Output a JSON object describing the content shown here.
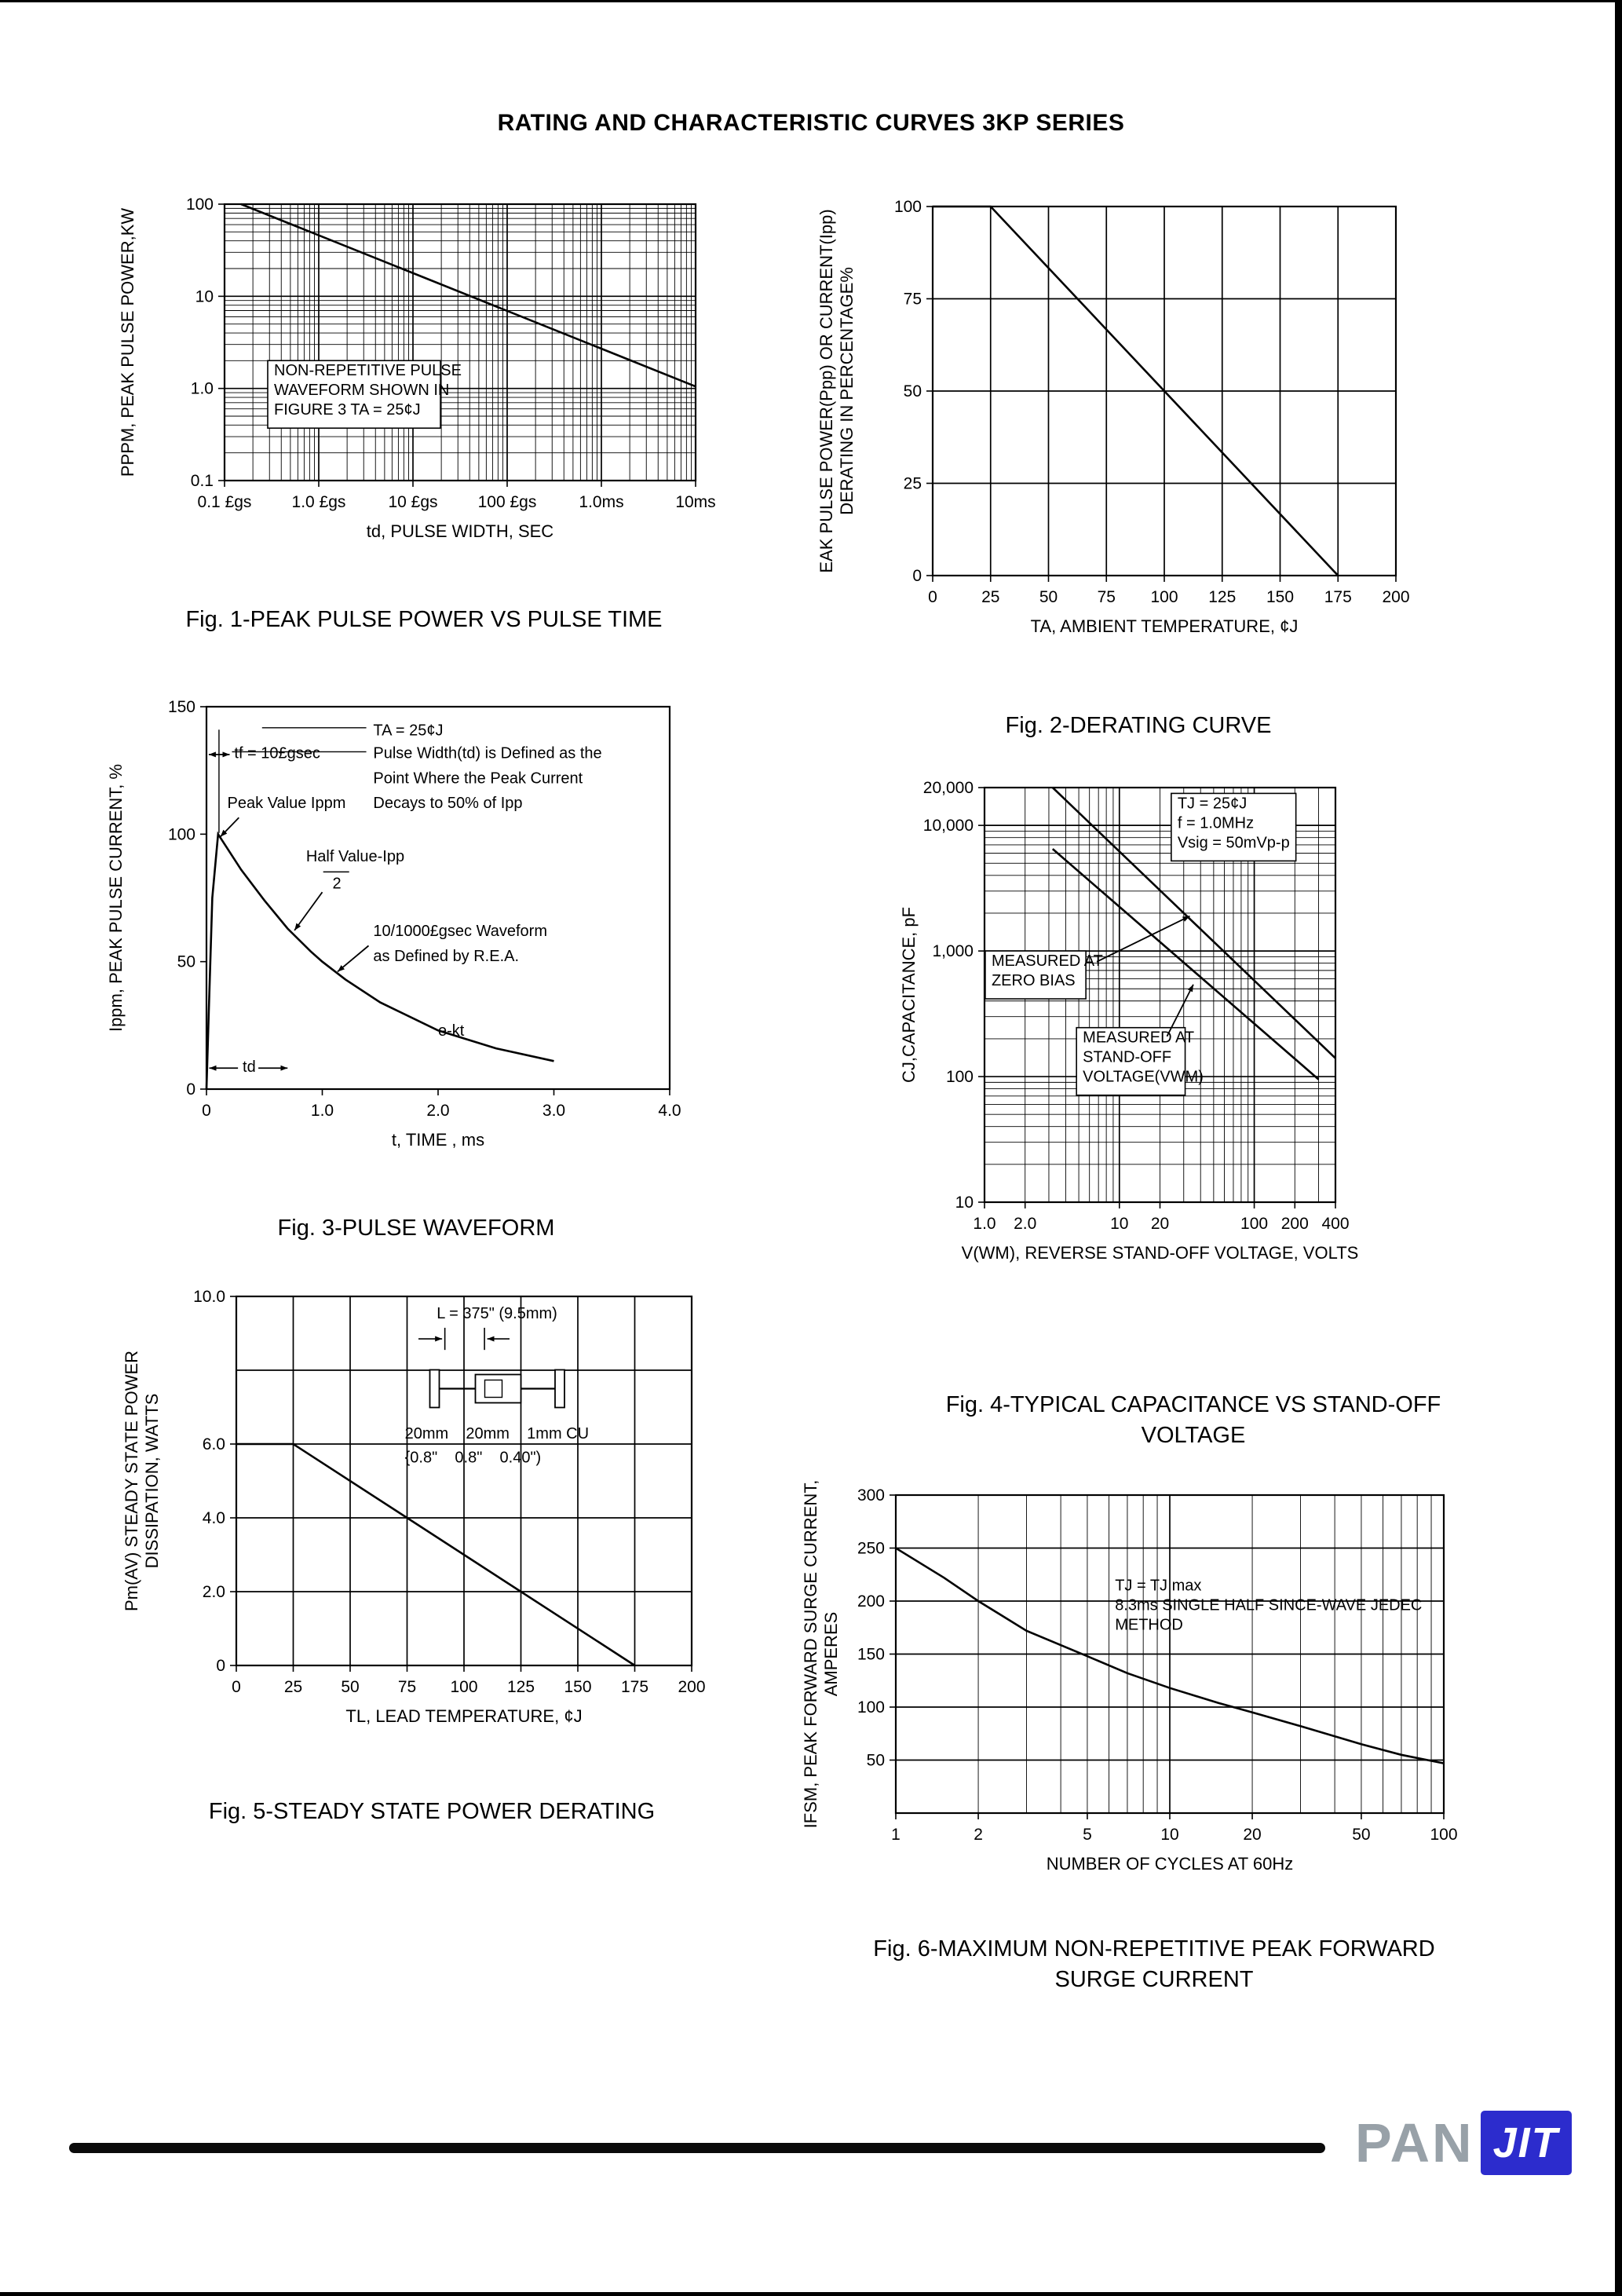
{
  "page": {
    "title": "RATING AND CHARACTERISTIC CURVES 3KP SERIES",
    "logo": {
      "pan": "PAN",
      "jit": "JIT",
      "accent": "#2c2ccd",
      "pan_color": "#98a1a8"
    }
  },
  "chart_data": [
    {
      "id": "fig1",
      "type": "line",
      "caption": [
        "Fig. 1-PEAK PULSE POWER VS PULSE TIME"
      ],
      "xlabel": "td, PULSE WIDTH, SEC",
      "ylabel": [
        "PPPM, PEAK PULSE POWER,KW"
      ],
      "xscale": "log",
      "yscale": "log",
      "xlim": [
        1e-07,
        0.01
      ],
      "ylim": [
        0.1,
        100
      ],
      "xticks": {
        "values": [
          1e-07,
          1e-06,
          1e-05,
          0.0001,
          0.001,
          0.01
        ],
        "labels": [
          "0.1 £gs",
          "1.0 £gs",
          "10 £gs",
          "100 £gs",
          "1.0ms",
          "10ms"
        ]
      },
      "yticks": {
        "values": [
          0.1,
          1,
          10,
          100
        ],
        "labels": [
          "0.1",
          "1.0",
          "10",
          "100"
        ]
      },
      "grid": {
        "x": "log",
        "y": "log"
      },
      "series": [
        {
          "name": "peak-pulse-power",
          "points": [
            [
              1.5e-07,
              100
            ],
            [
              0.01,
              1.05
            ]
          ]
        }
      ],
      "annotations": [
        {
          "t": [
            "NON-REPETITIVE PULSE",
            "WAVEFORM SHOWN IN",
            "FIGURE 3 TA = 25¢J"
          ],
          "fx": 0.105,
          "fy": 0.62,
          "box": true
        }
      ]
    },
    {
      "id": "fig2",
      "type": "line",
      "caption": [
        "Fig. 2-DERATING CURVE"
      ],
      "xlabel": "TA, AMBIENT TEMPERATURE, ¢J",
      "ylabel": [
        "EAK PULSE POWER(Ppp) OR CURRENT(Ipp)",
        "DERATING IN PERCENTAGE%"
      ],
      "xscale": "linear",
      "yscale": "linear",
      "xlim": [
        0,
        200
      ],
      "ylim": [
        0,
        100
      ],
      "xticks": {
        "values": [
          0,
          25,
          50,
          75,
          100,
          125,
          150,
          175,
          200
        ],
        "labels": [
          "0",
          "25",
          "50",
          "75",
          "100",
          "125",
          "150",
          "175",
          "200"
        ]
      },
      "yticks": {
        "values": [
          0,
          25,
          50,
          75,
          100
        ],
        "labels": [
          "0",
          "25",
          "50",
          "75",
          "100"
        ]
      },
      "grid": {
        "x": [
          25,
          50,
          75,
          100,
          125,
          150,
          175
        ],
        "y": [
          25,
          50,
          75
        ]
      },
      "series": [
        {
          "name": "derating",
          "points": [
            [
              0,
              100
            ],
            [
              25,
              100
            ],
            [
              175,
              0
            ]
          ]
        }
      ],
      "annotations": []
    },
    {
      "id": "fig3",
      "type": "line",
      "caption": [
        "Fig. 3-PULSE WAVEFORM"
      ],
      "xlabel": "t, TIME , ms",
      "ylabel": [
        "Ippm, PEAK PULSE CURRENT, %"
      ],
      "xscale": "linear",
      "yscale": "linear",
      "xlim": [
        0,
        4
      ],
      "ylim": [
        0,
        150
      ],
      "xticks": {
        "values": [
          0,
          1,
          2,
          3,
          4
        ],
        "labels": [
          "0",
          "1.0",
          "2.0",
          "3.0",
          "4.0"
        ]
      },
      "yticks": {
        "values": [
          0,
          50,
          100,
          150
        ],
        "labels": [
          "0",
          "50",
          "100",
          "150"
        ]
      },
      "grid": null,
      "series": [
        {
          "name": "pulse-waveform",
          "points": [
            [
              0,
              0
            ],
            [
              0.02,
              30
            ],
            [
              0.05,
              75
            ],
            [
              0.1,
              100
            ],
            [
              0.3,
              86
            ],
            [
              0.5,
              74
            ],
            [
              0.7,
              63
            ],
            [
              0.9,
              54
            ],
            [
              1.0,
              50
            ],
            [
              1.2,
              43
            ],
            [
              1.5,
              34
            ],
            [
              2.0,
              23
            ],
            [
              2.5,
              16
            ],
            [
              3.0,
              11
            ]
          ]
        }
      ],
      "annotations": [
        {
          "t": [
            "TA = 25¢J"
          ],
          "fx": 0.36,
          "fy": 0.075
        },
        {
          "t": [
            "tf = 10£gsec"
          ],
          "fx": 0.06,
          "fy": 0.135,
          "darrow": [
            0.005,
            0.125,
            0.05,
            0.125
          ]
        },
        {
          "t": [
            "Pulse Width(td) is Defined as the"
          ],
          "fx": 0.36,
          "fy": 0.135
        },
        {
          "t": [
            "Point Where the Peak Current"
          ],
          "fx": 0.36,
          "fy": 0.2
        },
        {
          "t": [
            "Peak Value Ippm"
          ],
          "fx": 0.045,
          "fy": 0.265,
          "arrow": [
            0.07,
            0.29,
            0.03,
            0.34
          ]
        },
        {
          "t": [
            "Decays to 50% of Ipp"
          ],
          "fx": 0.36,
          "fy": 0.265
        },
        {
          "t": [
            "Half Value-Ipp"
          ],
          "fx": 0.215,
          "fy": 0.405,
          "line": [
            0.252,
            0.432,
            0.308,
            0.432
          ],
          "arrow": [
            0.25,
            0.485,
            0.19,
            0.585
          ]
        },
        {
          "t": [
            "2"
          ],
          "fx": 0.272,
          "fy": 0.475
        },
        {
          "t": [
            "10/1000£gsec Waveform"
          ],
          "fx": 0.36,
          "fy": 0.6,
          "arrow": [
            0.35,
            0.625,
            0.283,
            0.693
          ]
        },
        {
          "t": [
            "as Defined by R.E.A."
          ],
          "fx": 0.36,
          "fy": 0.665
        },
        {
          "t": [
            "e-kt"
          ],
          "fx": 0.5,
          "fy": 0.86
        },
        {
          "t": [
            "td"
          ],
          "fx": 0.078,
          "fy": 0.955
        },
        {
          "t": [],
          "fx": 0,
          "fy": 0,
          "arrow": [
            0.068,
            0.945,
            0.006,
            0.945
          ]
        },
        {
          "t": [],
          "fx": 0,
          "fy": 0,
          "arrow": [
            0.112,
            0.945,
            0.175,
            0.945
          ]
        },
        {
          "t": [],
          "fx": 0,
          "fy": 0,
          "line": [
            0.345,
            0.055,
            0.12,
            0.055
          ]
        },
        {
          "t": [],
          "fx": 0,
          "fy": 0,
          "line": [
            0.345,
            0.118,
            0.055,
            0.118
          ]
        },
        {
          "t": [],
          "fx": 0,
          "fy": 0,
          "line": [
            0.027,
            0.06,
            0.027,
            0.33
          ]
        }
      ]
    },
    {
      "id": "fig4",
      "type": "line",
      "caption": [
        "Fig. 4-TYPICAL CAPACITANCE VS STAND-OFF",
        "VOLTAGE"
      ],
      "xlabel": "V(WM), REVERSE STAND-OFF VOLTAGE, VOLTS",
      "ylabel": [
        "CJ,CAPACITANCE, pF"
      ],
      "xscale": "log",
      "yscale": "log",
      "xlim": [
        1,
        400
      ],
      "ylim": [
        10,
        20000
      ],
      "xticks": {
        "values": [
          1,
          2,
          10,
          20,
          100,
          200,
          400
        ],
        "labels": [
          "1.0",
          "2.0",
          "10",
          "20",
          "100",
          "200",
          "400"
        ]
      },
      "yticks": {
        "values": [
          10,
          100,
          1000,
          10000,
          20000
        ],
        "labels": [
          "10",
          "100",
          "1,000",
          "10,000",
          "20,000"
        ]
      },
      "grid": {
        "x": "log",
        "y": "log"
      },
      "series": [
        {
          "name": "zero-bias",
          "points": [
            [
              3.2,
              20000
            ],
            [
              400,
              140
            ]
          ]
        },
        {
          "name": "stand-off",
          "points": [
            [
              3.2,
              6500
            ],
            [
              300,
              95
            ]
          ]
        }
      ],
      "annotations": [
        {
          "t": [
            "TJ = 25¢J",
            "f = 1.0MHz",
            "Vsig = 50mVp-p"
          ],
          "fx": 0.55,
          "fy": 0.05,
          "box": true
        },
        {
          "t": [
            "MEASURED AT",
            "ZERO BIAS"
          ],
          "fx": 0.02,
          "fy": 0.43,
          "box": true,
          "arrow": [
            0.32,
            0.42,
            0.585,
            0.31
          ]
        },
        {
          "t": [
            "MEASURED AT",
            "STAND-OFF",
            "VOLTAGE(VWM)"
          ],
          "fx": 0.28,
          "fy": 0.615,
          "box": true,
          "arrow": [
            0.52,
            0.6,
            0.595,
            0.475
          ]
        }
      ]
    },
    {
      "id": "fig5",
      "type": "line",
      "caption": [
        "Fig. 5-STEADY STATE POWER DERATING"
      ],
      "xlabel": "TL, LEAD TEMPERATURE, ¢J",
      "ylabel": [
        "Pm(AV) STEADY STATE POWER",
        "DISSIPATION, WATTS"
      ],
      "xscale": "linear",
      "yscale": "linear",
      "xlim": [
        0,
        200
      ],
      "ylim": [
        0,
        10
      ],
      "xticks": {
        "values": [
          0,
          25,
          50,
          75,
          100,
          125,
          150,
          175,
          200
        ],
        "labels": [
          "0",
          "25",
          "50",
          "75",
          "100",
          "125",
          "150",
          "175",
          "200"
        ]
      },
      "yticks": {
        "values": [
          0,
          2,
          4,
          6,
          10
        ],
        "labels": [
          "0",
          "2.0",
          "4.0",
          "6.0",
          "10.0"
        ]
      },
      "grid": {
        "x": [
          25,
          50,
          75,
          100,
          125,
          150,
          175
        ],
        "y": [
          2,
          4,
          6,
          8
        ]
      },
      "series": [
        {
          "name": "power-derating",
          "points": [
            [
              0,
              6
            ],
            [
              25,
              6
            ],
            [
              175,
              0
            ]
          ]
        }
      ],
      "inset": true,
      "annotations": [
        {
          "t": [
            "L = 375\" (9.5mm)"
          ],
          "fx": 0.44,
          "fy": 0.06
        },
        {
          "t": [
            "20mm    20mm    1mm CU"
          ],
          "fx": 0.37,
          "fy": 0.385
        },
        {
          "t": [
            "{0.8\"    0.8\"    0.40\")"
          ],
          "fx": 0.37,
          "fy": 0.45
        }
      ]
    },
    {
      "id": "fig6",
      "type": "line",
      "caption": [
        "Fig. 6-MAXIMUM NON-REPETITIVE PEAK FORWARD",
        "SURGE CURRENT"
      ],
      "xlabel": "NUMBER OF CYCLES AT 60Hz",
      "ylabel": [
        "IFSM, PEAK FORWARD SURGE CURRENT,",
        "AMPERES"
      ],
      "xscale": "log",
      "yscale": "linear",
      "xlim": [
        1,
        100
      ],
      "ylim": [
        0,
        300
      ],
      "xticks": {
        "values": [
          1,
          2,
          5,
          10,
          20,
          50,
          100
        ],
        "labels": [
          "1",
          "2",
          "5",
          "10",
          "20",
          "50",
          "100"
        ]
      },
      "yticks": {
        "values": [
          50,
          100,
          150,
          200,
          250,
          300
        ],
        "labels": [
          "50",
          "100",
          "150",
          "200",
          "250",
          "300"
        ]
      },
      "grid": {
        "x": "log",
        "y": [
          50,
          100,
          150,
          200,
          250
        ]
      },
      "series": [
        {
          "name": "surge-current",
          "points": [
            [
              1,
              250
            ],
            [
              1.5,
              222
            ],
            [
              2,
              200
            ],
            [
              3,
              172
            ],
            [
              5,
              148
            ],
            [
              7,
              132
            ],
            [
              10,
              118
            ],
            [
              15,
              104
            ],
            [
              20,
              95
            ],
            [
              30,
              82
            ],
            [
              50,
              65
            ],
            [
              70,
              55
            ],
            [
              100,
              47
            ]
          ]
        }
      ],
      "annotations": [
        {
          "t": [
            "TJ = TJ max",
            "8.3ms SINGLE HALF SINCE-WAVE JEDEC",
            "METHOD"
          ],
          "fx": 0.4,
          "fy": 0.3
        }
      ]
    }
  ]
}
